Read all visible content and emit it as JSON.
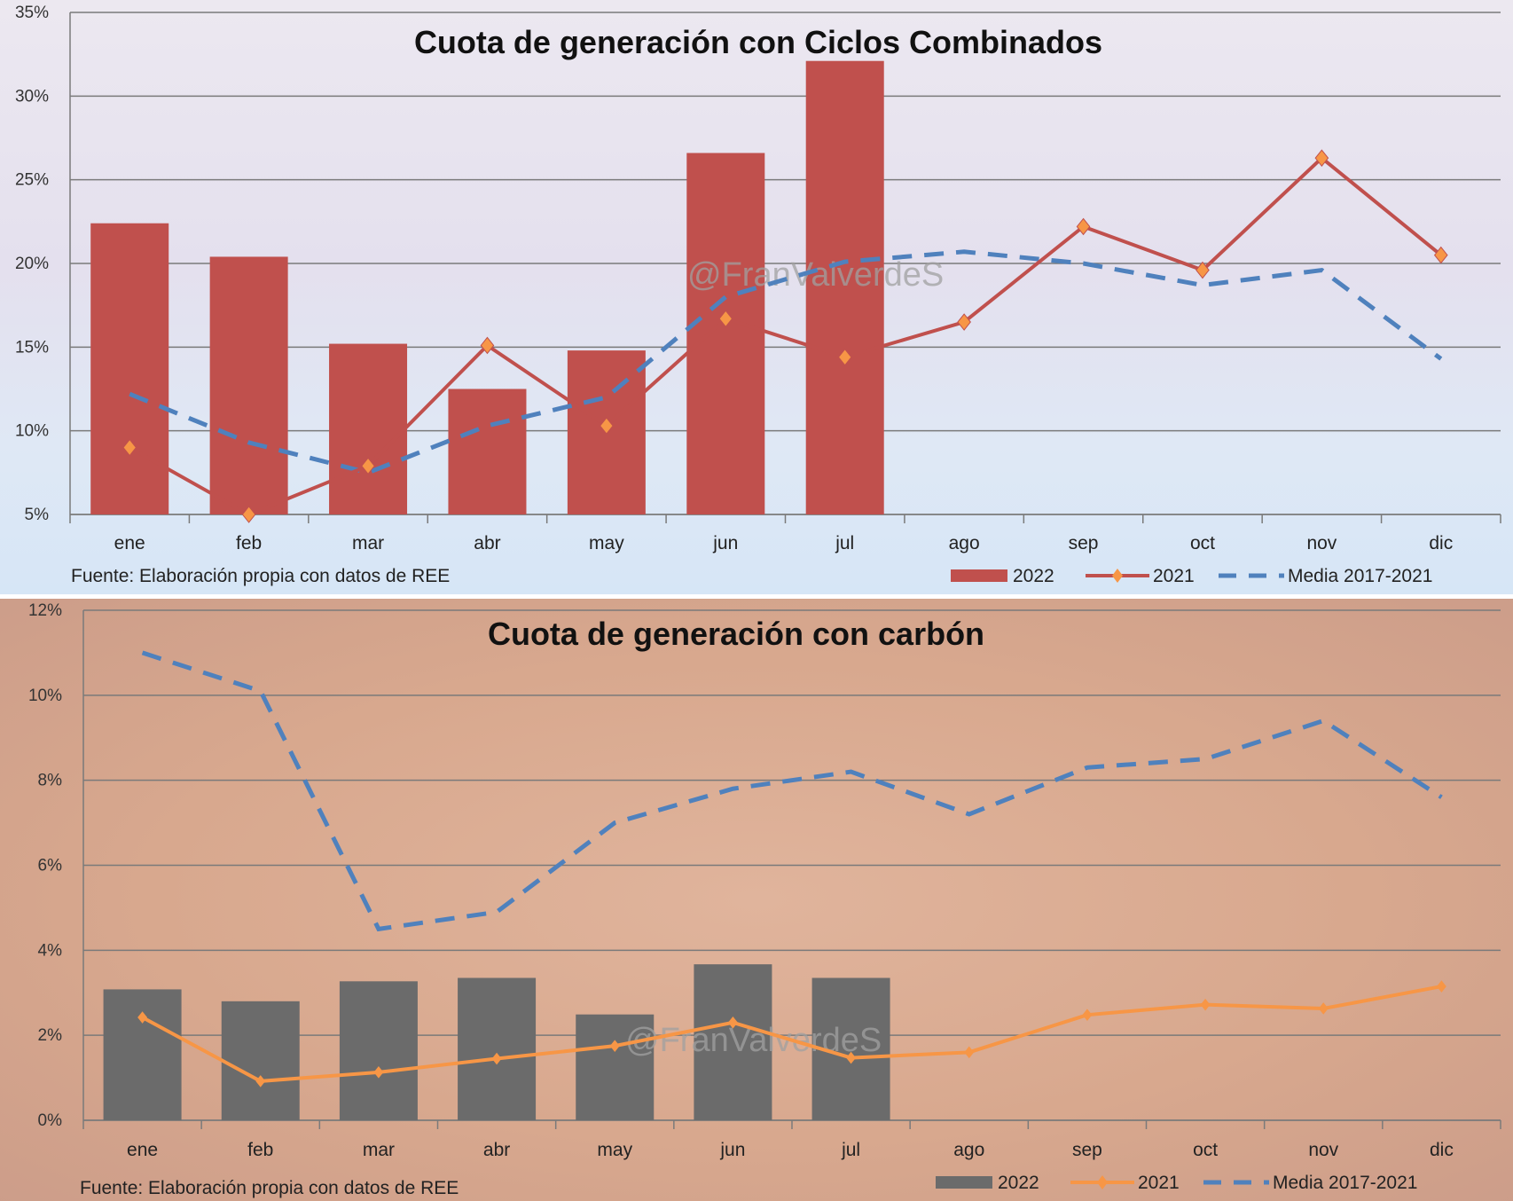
{
  "chart_data": [
    {
      "type": "bar",
      "title": "Cuota de generación con Ciclos Combinados",
      "categories": [
        "ene",
        "feb",
        "mar",
        "abr",
        "may",
        "jun",
        "jul",
        "ago",
        "sep",
        "oct",
        "nov",
        "dic"
      ],
      "ylim": [
        5,
        35
      ],
      "yticks": [
        "5%",
        "10%",
        "15%",
        "20%",
        "25%",
        "30%",
        "35%"
      ],
      "ytick_values": [
        5,
        10,
        15,
        20,
        25,
        30,
        35
      ],
      "grid": true,
      "legend_placement": "bottom-right",
      "source": "Fuente: Elaboración propia con datos de REE",
      "watermark": "@FranValverdeS",
      "series": [
        {
          "name": "2022",
          "kind": "bar",
          "color": "#c0504d",
          "values": [
            22.4,
            20.4,
            15.2,
            12.5,
            14.8,
            26.6,
            32.1,
            null,
            null,
            null,
            null,
            null
          ]
        },
        {
          "name": "2021",
          "kind": "line-marker",
          "color": "#c0504d",
          "marker_color": "#f79646",
          "values": [
            9.0,
            5.0,
            7.9,
            15.1,
            10.3,
            16.7,
            14.4,
            16.5,
            22.2,
            19.6,
            26.3,
            20.5
          ]
        },
        {
          "name": "Media 2017-2021",
          "kind": "dashed-line",
          "color": "#4f81bd",
          "values": [
            12.2,
            9.3,
            7.5,
            10.3,
            12.0,
            18.0,
            20.1,
            20.7,
            20.0,
            18.7,
            19.6,
            14.3
          ]
        }
      ]
    },
    {
      "type": "bar",
      "title": "Cuota de generación con carbón",
      "categories": [
        "ene",
        "feb",
        "mar",
        "abr",
        "may",
        "jun",
        "jul",
        "ago",
        "sep",
        "oct",
        "nov",
        "dic"
      ],
      "ylim": [
        0,
        12
      ],
      "yticks": [
        "0%",
        "2%",
        "4%",
        "6%",
        "8%",
        "10%",
        "12%"
      ],
      "ytick_values": [
        0,
        2,
        4,
        6,
        8,
        10,
        12
      ],
      "grid": true,
      "legend_placement": "bottom-right",
      "source": "Fuente: Elaboración propia con datos de REE",
      "watermark": "@FranValverdeS",
      "series": [
        {
          "name": "2022",
          "kind": "bar",
          "color": "#6b6b6b",
          "values": [
            3.08,
            2.8,
            3.27,
            3.35,
            2.49,
            3.67,
            3.35,
            null,
            null,
            null,
            null,
            null
          ]
        },
        {
          "name": "2021",
          "kind": "line-marker",
          "color": "#f79646",
          "marker_color": "#f79646",
          "values": [
            2.42,
            0.92,
            1.13,
            1.45,
            1.75,
            2.3,
            1.47,
            1.6,
            2.48,
            2.72,
            2.63,
            3.15
          ]
        },
        {
          "name": "Media 2017-2021",
          "kind": "dashed-line",
          "color": "#4f81bd",
          "values": [
            11.0,
            10.1,
            4.5,
            4.9,
            7.0,
            7.8,
            8.2,
            7.2,
            8.3,
            8.5,
            9.4,
            7.6
          ]
        }
      ]
    }
  ]
}
